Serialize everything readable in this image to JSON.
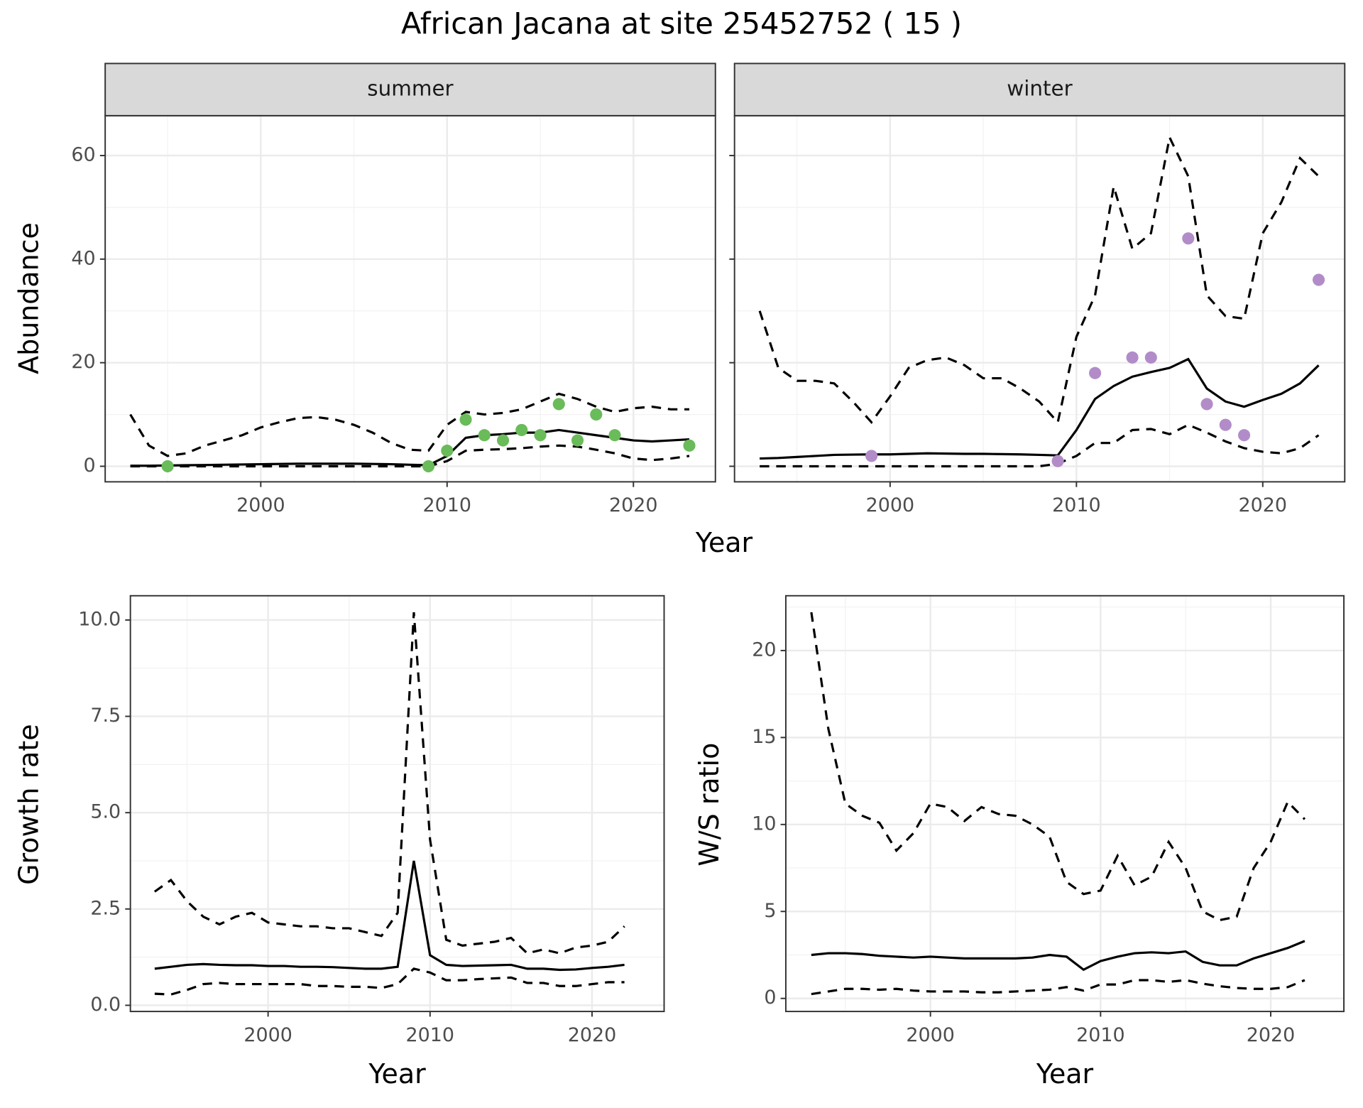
{
  "title": "African Jacana at site 25452752 ( 15 )",
  "chart_data": [
    {
      "type": "line",
      "facet": "summer",
      "xlabel": "Year",
      "ylabel": "Abundance",
      "xlim": [
        1991.65,
        2024.4
      ],
      "ylim": [
        -3.0,
        67.7
      ],
      "xticks": [
        2000,
        2010,
        2020
      ],
      "yticks": [
        0,
        20,
        40,
        60
      ],
      "xminor": [
        1995,
        2005,
        2015
      ],
      "yminor": [
        10,
        30,
        50
      ],
      "grid": true,
      "series": [
        {
          "kind": "line",
          "dash": false,
          "color": "#000000",
          "x": [
            1993,
            1994,
            1995,
            1996,
            1997,
            1998,
            1999,
            2000,
            2001,
            2002,
            2003,
            2004,
            2005,
            2006,
            2007,
            2008,
            2009,
            2010,
            2011,
            2012,
            2013,
            2014,
            2015,
            2016,
            2017,
            2018,
            2019,
            2020,
            2021,
            2022,
            2023
          ],
          "values": [
            0.1,
            0.1,
            0.15,
            0.2,
            0.25,
            0.3,
            0.35,
            0.4,
            0.45,
            0.5,
            0.5,
            0.5,
            0.5,
            0.45,
            0.4,
            0.3,
            0.2,
            2,
            5.5,
            6,
            6.2,
            6.5,
            6.5,
            7,
            6.5,
            6,
            5.5,
            5,
            4.8,
            5,
            5.2
          ]
        },
        {
          "kind": "line",
          "dash": true,
          "color": "#000000",
          "x": [
            1993,
            1994,
            1995,
            1996,
            1997,
            1998,
            1999,
            2000,
            2001,
            2002,
            2003,
            2004,
            2005,
            2006,
            2007,
            2008,
            2009,
            2010,
            2011,
            2012,
            2013,
            2014,
            2015,
            2016,
            2017,
            2018,
            2019,
            2020,
            2021,
            2022,
            2023
          ],
          "values": [
            10,
            4,
            2,
            2.5,
            4,
            5,
            6,
            7.5,
            8.5,
            9.3,
            9.5,
            9,
            8,
            6.5,
            4.5,
            3.2,
            3,
            8,
            10.5,
            10,
            10.3,
            11,
            12.5,
            14,
            13,
            11.5,
            10.5,
            11.2,
            11.5,
            11,
            11
          ]
        },
        {
          "kind": "line",
          "dash": true,
          "color": "#000000",
          "x": [
            1993,
            1994,
            1995,
            1996,
            1997,
            1998,
            1999,
            2000,
            2001,
            2002,
            2003,
            2004,
            2005,
            2006,
            2007,
            2008,
            2009,
            2010,
            2011,
            2012,
            2013,
            2014,
            2015,
            2016,
            2017,
            2018,
            2019,
            2020,
            2021,
            2022,
            2023
          ],
          "values": [
            0,
            0,
            0,
            0,
            0,
            0,
            0,
            0,
            0,
            0,
            0,
            0,
            0,
            0,
            0,
            0,
            0,
            1,
            3,
            3.2,
            3.3,
            3.5,
            3.8,
            4,
            3.8,
            3.2,
            2.5,
            1.5,
            1.2,
            1.5,
            2
          ]
        },
        {
          "kind": "points",
          "color": "#6abb5a",
          "x": [
            1995,
            2009,
            2010,
            2011,
            2012,
            2013,
            2014,
            2015,
            2016,
            2017,
            2018,
            2019,
            2023
          ],
          "values": [
            0,
            0,
            3,
            9,
            6,
            5,
            7,
            6,
            12,
            5,
            10,
            6,
            4
          ]
        }
      ]
    },
    {
      "type": "line",
      "facet": "winter",
      "ytick_labels": false,
      "xlim": [
        1991.65,
        2024.4
      ],
      "ylim": [
        -3.0,
        67.7
      ],
      "xticks": [
        2000,
        2010,
        2020
      ],
      "yticks": [
        0,
        20,
        40,
        60
      ],
      "xminor": [
        1995,
        2005,
        2015
      ],
      "yminor": [
        10,
        30,
        50
      ],
      "grid": true,
      "series": [
        {
          "kind": "line",
          "dash": false,
          "color": "#000000",
          "x": [
            1993,
            1994,
            1995,
            1996,
            1997,
            1998,
            1999,
            2000,
            2001,
            2002,
            2003,
            2004,
            2005,
            2006,
            2007,
            2008,
            2009,
            2010,
            2011,
            2012,
            2013,
            2014,
            2015,
            2016,
            2017,
            2018,
            2019,
            2020,
            2021,
            2022,
            2023
          ],
          "values": [
            1.5,
            1.6,
            1.8,
            2,
            2.2,
            2.25,
            2.3,
            2.3,
            2.4,
            2.5,
            2.45,
            2.4,
            2.4,
            2.35,
            2.3,
            2.2,
            2.1,
            7,
            13,
            15.5,
            17.3,
            18.2,
            19,
            20.7,
            15,
            12.5,
            11.5,
            12.8,
            14,
            16,
            19.5
          ]
        },
        {
          "kind": "line",
          "dash": true,
          "color": "#000000",
          "x": [
            1993,
            1994,
            1995,
            1996,
            1997,
            1998,
            1999,
            2000,
            2001,
            2002,
            2003,
            2004,
            2005,
            2006,
            2007,
            2008,
            2009,
            2010,
            2011,
            2012,
            2013,
            2014,
            2015,
            2016,
            2017,
            2018,
            2019,
            2020,
            2021,
            2022,
            2023
          ],
          "values": [
            30,
            19,
            16.5,
            16.5,
            16,
            12.5,
            8.5,
            13.5,
            19,
            20.5,
            21,
            19.5,
            17,
            17,
            15,
            12.5,
            8.5,
            25,
            33,
            54,
            42,
            45,
            63.5,
            56,
            33,
            29,
            28.5,
            45,
            51,
            59.5,
            56
          ]
        },
        {
          "kind": "line",
          "dash": true,
          "color": "#000000",
          "x": [
            1993,
            1994,
            1995,
            1996,
            1997,
            1998,
            1999,
            2000,
            2001,
            2002,
            2003,
            2004,
            2005,
            2006,
            2007,
            2008,
            2009,
            2010,
            2011,
            2012,
            2013,
            2014,
            2015,
            2016,
            2017,
            2018,
            2019,
            2020,
            2021,
            2022,
            2023
          ],
          "values": [
            0,
            0,
            0,
            0,
            0,
            0,
            0,
            0,
            0,
            0,
            0,
            0,
            0,
            0,
            0,
            0,
            0.5,
            2,
            4.5,
            4.5,
            7,
            7.2,
            6.2,
            8,
            6.5,
            4.8,
            3.5,
            2.8,
            2.5,
            3.5,
            6
          ]
        },
        {
          "kind": "points",
          "color": "#b28cc8",
          "x": [
            1999,
            2009,
            2011,
            2013,
            2014,
            2016,
            2017,
            2018,
            2019,
            2023
          ],
          "values": [
            2,
            1,
            18,
            21,
            21,
            44,
            12,
            8,
            6,
            36
          ]
        }
      ]
    },
    {
      "type": "line",
      "xlabel": "Year",
      "ylabel": "Growth rate",
      "xlim": [
        1991.5,
        2024.45
      ],
      "ylim": [
        -0.16,
        10.63
      ],
      "xticks": [
        2000,
        2010,
        2020
      ],
      "yticks": [
        {
          "value": 0,
          "label": "0.0"
        },
        2.5,
        {
          "value": 5,
          "label": "5.0"
        },
        7.5,
        {
          "value": 10,
          "label": "10.0"
        }
      ],
      "xminor": [
        1995,
        2005,
        2015
      ],
      "yminor": [
        1.25,
        3.75,
        6.25,
        8.75
      ],
      "grid": true,
      "series": [
        {
          "kind": "line",
          "dash": false,
          "color": "#000000",
          "x": [
            1993,
            1994,
            1995,
            1996,
            1997,
            1998,
            1999,
            2000,
            2001,
            2002,
            2003,
            2004,
            2005,
            2006,
            2007,
            2008,
            2009,
            2010,
            2011,
            2012,
            2013,
            2014,
            2015,
            2016,
            2017,
            2018,
            2019,
            2020,
            2021,
            2022
          ],
          "values": [
            0.95,
            1.0,
            1.05,
            1.07,
            1.05,
            1.04,
            1.04,
            1.02,
            1.02,
            1.0,
            1.0,
            0.99,
            0.97,
            0.95,
            0.95,
            1.0,
            3.75,
            1.3,
            1.05,
            1.02,
            1.03,
            1.04,
            1.05,
            0.95,
            0.95,
            0.92,
            0.93,
            0.97,
            1.0,
            1.05
          ]
        },
        {
          "kind": "line",
          "dash": true,
          "color": "#000000",
          "x": [
            1993,
            1994,
            1995,
            1996,
            1997,
            1998,
            1999,
            2000,
            2001,
            2002,
            2003,
            2004,
            2005,
            2006,
            2007,
            2008,
            2009,
            2010,
            2011,
            2012,
            2013,
            2014,
            2015,
            2016,
            2017,
            2018,
            2019,
            2020,
            2021,
            2022
          ],
          "values": [
            2.95,
            3.25,
            2.7,
            2.3,
            2.1,
            2.3,
            2.4,
            2.15,
            2.1,
            2.05,
            2.05,
            2.0,
            2.0,
            1.9,
            1.8,
            2.4,
            10.2,
            4.3,
            1.7,
            1.55,
            1.6,
            1.65,
            1.75,
            1.35,
            1.45,
            1.35,
            1.5,
            1.55,
            1.65,
            2.05
          ]
        },
        {
          "kind": "line",
          "dash": true,
          "color": "#000000",
          "x": [
            1993,
            1994,
            1995,
            1996,
            1997,
            1998,
            1999,
            2000,
            2001,
            2002,
            2003,
            2004,
            2005,
            2006,
            2007,
            2008,
            2009,
            2010,
            2011,
            2012,
            2013,
            2014,
            2015,
            2016,
            2017,
            2018,
            2019,
            2020,
            2021,
            2022
          ],
          "values": [
            0.3,
            0.28,
            0.4,
            0.55,
            0.58,
            0.55,
            0.55,
            0.55,
            0.55,
            0.55,
            0.5,
            0.5,
            0.48,
            0.48,
            0.45,
            0.55,
            0.95,
            0.85,
            0.65,
            0.65,
            0.68,
            0.7,
            0.72,
            0.58,
            0.58,
            0.5,
            0.5,
            0.55,
            0.6,
            0.6
          ]
        }
      ]
    },
    {
      "type": "line",
      "xlabel": "Year",
      "ylabel": "W/S ratio",
      "xlim": [
        1991.5,
        2024.3
      ],
      "ylim": [
        -0.75,
        23.15
      ],
      "xticks": [
        2000,
        2010,
        2020
      ],
      "yticks": [
        0,
        5,
        10,
        15,
        20
      ],
      "xminor": [
        1995,
        2005,
        2015
      ],
      "yminor": [
        2.5,
        7.5,
        12.5,
        17.5,
        22.5
      ],
      "grid": true,
      "series": [
        {
          "kind": "line",
          "dash": false,
          "color": "#000000",
          "x": [
            1993,
            1994,
            1995,
            1996,
            1997,
            1998,
            1999,
            2000,
            2001,
            2002,
            2003,
            2004,
            2005,
            2006,
            2007,
            2008,
            2009,
            2010,
            2011,
            2012,
            2013,
            2014,
            2015,
            2016,
            2017,
            2018,
            2019,
            2020,
            2021,
            2022
          ],
          "values": [
            2.5,
            2.6,
            2.6,
            2.55,
            2.45,
            2.4,
            2.35,
            2.4,
            2.35,
            2.3,
            2.3,
            2.3,
            2.3,
            2.35,
            2.5,
            2.4,
            1.65,
            2.15,
            2.4,
            2.6,
            2.65,
            2.6,
            2.7,
            2.1,
            1.9,
            1.9,
            2.3,
            2.6,
            2.9,
            3.3
          ]
        },
        {
          "kind": "line",
          "dash": true,
          "color": "#000000",
          "x": [
            1993,
            1994,
            1995,
            1996,
            1997,
            1998,
            1999,
            2000,
            2001,
            2002,
            2003,
            2004,
            2005,
            2006,
            2007,
            2008,
            2009,
            2010,
            2011,
            2012,
            2013,
            2014,
            2015,
            2016,
            2017,
            2018,
            2019,
            2020,
            2021,
            2022
          ],
          "values": [
            22.2,
            15.5,
            11.2,
            10.5,
            10.1,
            8.5,
            9.5,
            11.2,
            11.0,
            10.2,
            11.0,
            10.6,
            10.5,
            10.0,
            9.3,
            6.7,
            6.0,
            6.2,
            8.2,
            6.5,
            7.0,
            9.0,
            7.5,
            5.0,
            4.5,
            4.7,
            7.5,
            9.0,
            11.3,
            10.3
          ]
        },
        {
          "kind": "line",
          "dash": true,
          "color": "#000000",
          "x": [
            1993,
            1994,
            1995,
            1996,
            1997,
            1998,
            1999,
            2000,
            2001,
            2002,
            2003,
            2004,
            2005,
            2006,
            2007,
            2008,
            2009,
            2010,
            2011,
            2012,
            2013,
            2014,
            2015,
            2016,
            2017,
            2018,
            2019,
            2020,
            2021,
            2022
          ],
          "values": [
            0.25,
            0.4,
            0.55,
            0.55,
            0.5,
            0.55,
            0.45,
            0.4,
            0.4,
            0.4,
            0.35,
            0.35,
            0.4,
            0.45,
            0.5,
            0.65,
            0.45,
            0.8,
            0.8,
            1.05,
            1.05,
            0.95,
            1.05,
            0.85,
            0.7,
            0.6,
            0.55,
            0.55,
            0.65,
            1.05
          ]
        }
      ]
    }
  ]
}
